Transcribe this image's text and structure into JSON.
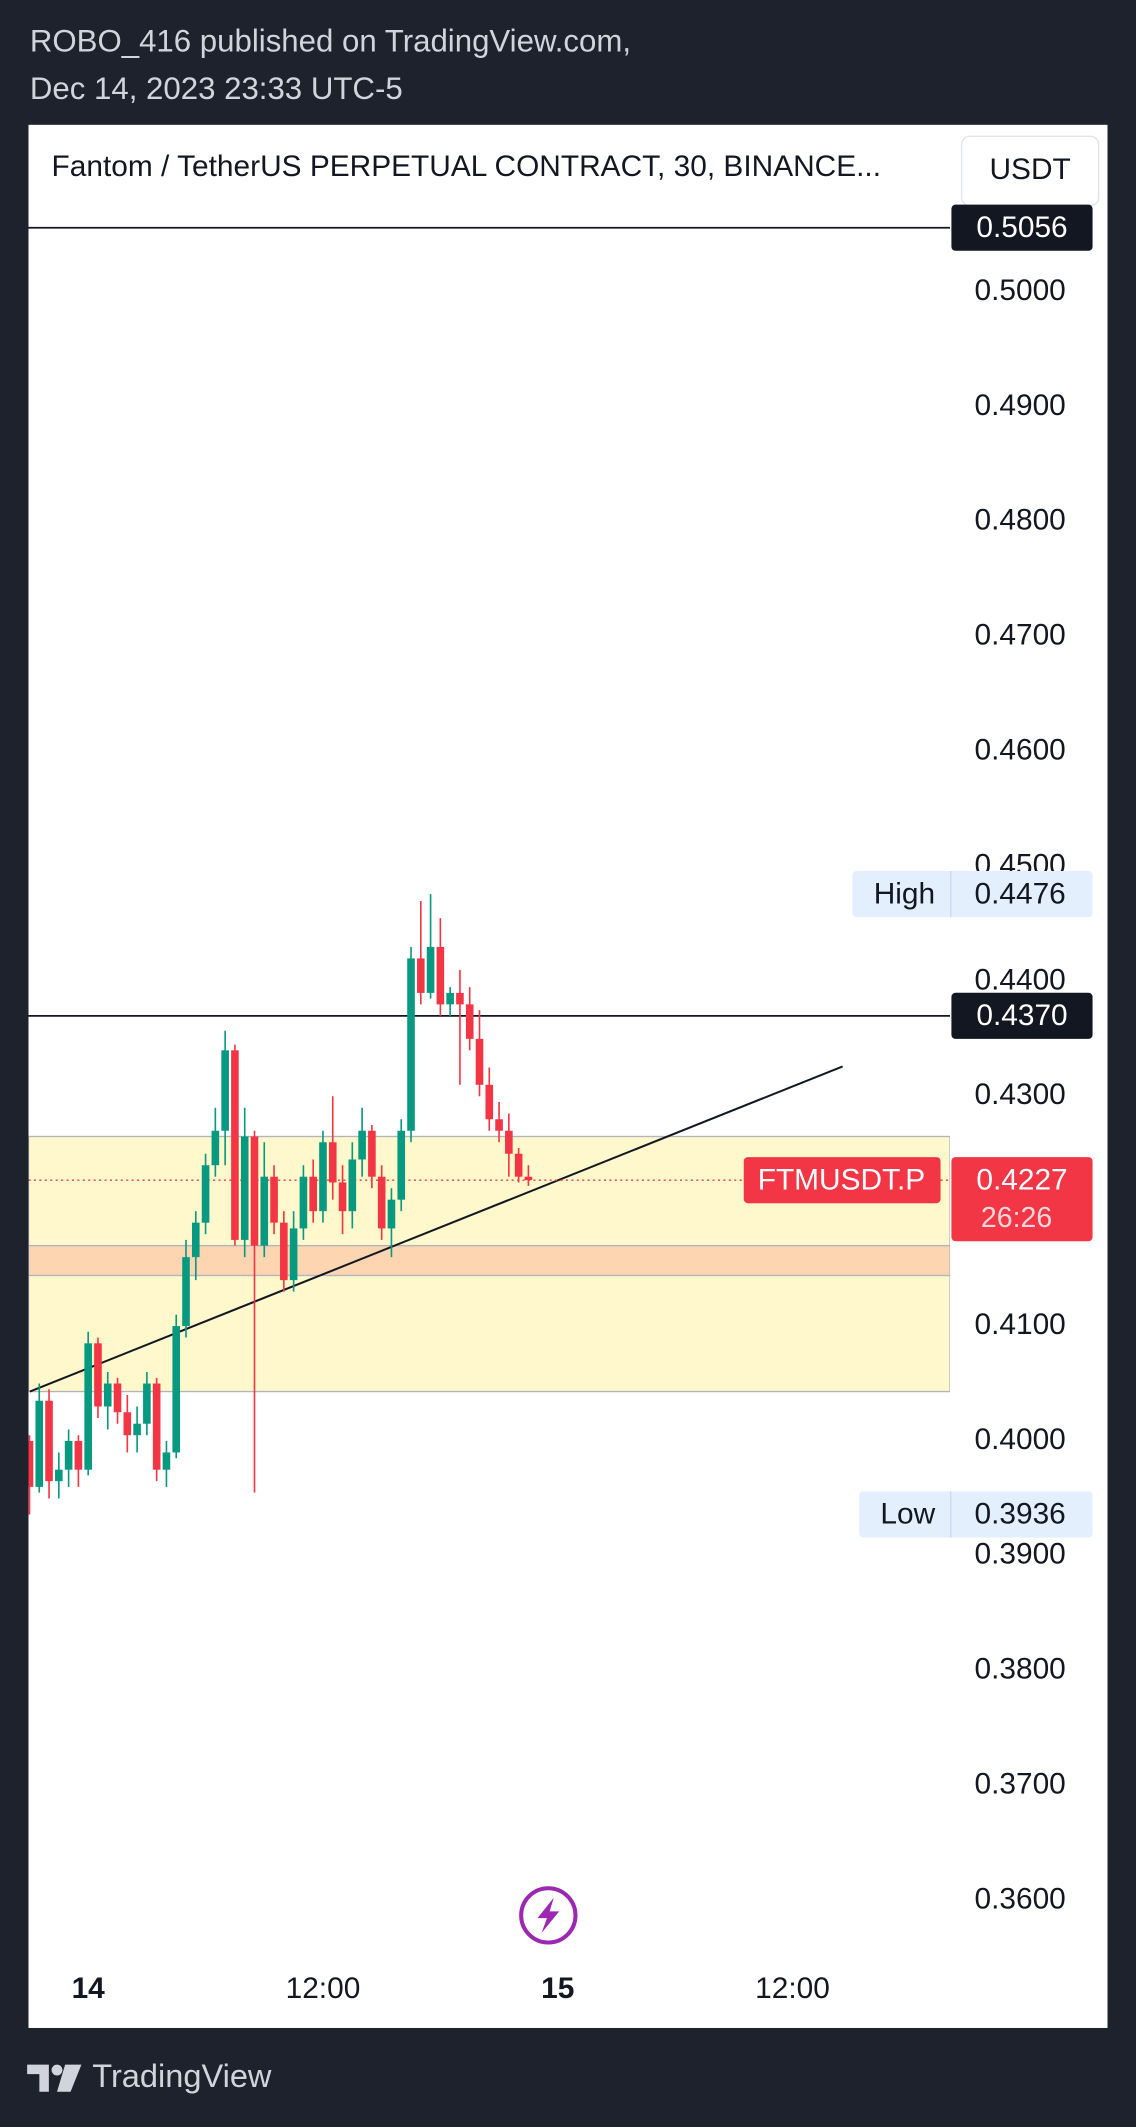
{
  "header": {
    "line1": "ROBO_416 published on TradingView.com,",
    "line2": "Dec 14, 2023 23:33 UTC-5"
  },
  "footer": {
    "brand": "TradingView"
  },
  "chart_data": {
    "type": "candlestick",
    "title": "Fantom / TetherUS PERPETUAL CONTRACT, 30, BINANCE...",
    "currency": "USDT",
    "up_color": "#089981",
    "down_color": "#f23645",
    "x": [
      -3,
      -2.5,
      -2,
      -1.5,
      -1,
      -0.5,
      0,
      0.5,
      1,
      1.5,
      2,
      2.5,
      3,
      3.5,
      4,
      4.5,
      5,
      5.5,
      6,
      6.5,
      7,
      7.5,
      8,
      8.5,
      9,
      9.5,
      10,
      10.5,
      11,
      11.5,
      12,
      12.5,
      13,
      13.5,
      14,
      14.5,
      15,
      15.5,
      16,
      16.5,
      17,
      17.5,
      18,
      18.5,
      19,
      19.5,
      20,
      20.5,
      21,
      21.5,
      22,
      22.5
    ],
    "open": [
      0.4,
      0.396,
      0.4035,
      0.3965,
      0.3975,
      0.4,
      0.3975,
      0.4085,
      0.403,
      0.405,
      0.4025,
      0.4005,
      0.4015,
      0.405,
      0.3975,
      0.399,
      0.41,
      0.416,
      0.419,
      0.424,
      0.427,
      0.434,
      0.4175,
      0.4265,
      0.417,
      0.423,
      0.419,
      0.414,
      0.4185,
      0.423,
      0.42,
      0.426,
      0.4225,
      0.42,
      0.4245,
      0.427,
      0.423,
      0.4185,
      0.421,
      0.427,
      0.442,
      0.439,
      0.443,
      0.438,
      0.439,
      0.438,
      0.435,
      0.431,
      0.428,
      0.427,
      0.425,
      0.423
    ],
    "high": [
      0.4005,
      0.405,
      0.4045,
      0.399,
      0.401,
      0.4005,
      0.4095,
      0.409,
      0.406,
      0.4055,
      0.404,
      0.403,
      0.406,
      0.4055,
      0.4,
      0.411,
      0.4175,
      0.42,
      0.425,
      0.429,
      0.4357,
      0.4345,
      0.429,
      0.427,
      0.426,
      0.424,
      0.42,
      0.42,
      0.424,
      0.4245,
      0.427,
      0.43,
      0.424,
      0.426,
      0.429,
      0.4275,
      0.424,
      0.422,
      0.428,
      0.443,
      0.447,
      0.4476,
      0.4455,
      0.4395,
      0.441,
      0.4395,
      0.4375,
      0.4325,
      0.4295,
      0.4285,
      0.4255,
      0.424
    ],
    "low": [
      0.3936,
      0.3955,
      0.395,
      0.395,
      0.396,
      0.396,
      0.397,
      0.402,
      0.401,
      0.4015,
      0.399,
      0.399,
      0.4005,
      0.3965,
      0.396,
      0.3985,
      0.409,
      0.414,
      0.418,
      0.423,
      0.424,
      0.417,
      0.416,
      0.3955,
      0.416,
      0.418,
      0.413,
      0.413,
      0.4175,
      0.419,
      0.419,
      0.421,
      0.418,
      0.4185,
      0.423,
      0.422,
      0.4175,
      0.416,
      0.42,
      0.426,
      0.438,
      0.4385,
      0.437,
      0.437,
      0.431,
      0.434,
      0.43,
      0.427,
      0.426,
      0.423,
      0.4225,
      0.4222
    ],
    "close": [
      0.396,
      0.4035,
      0.3965,
      0.3975,
      0.4,
      0.3975,
      0.4085,
      0.403,
      0.405,
      0.4025,
      0.4005,
      0.4015,
      0.405,
      0.3975,
      0.399,
      0.41,
      0.416,
      0.419,
      0.424,
      0.427,
      0.434,
      0.4175,
      0.4265,
      0.417,
      0.423,
      0.419,
      0.414,
      0.4185,
      0.423,
      0.42,
      0.426,
      0.4225,
      0.42,
      0.4245,
      0.427,
      0.423,
      0.4185,
      0.421,
      0.427,
      0.442,
      0.439,
      0.443,
      0.438,
      0.439,
      0.438,
      0.435,
      0.431,
      0.428,
      0.427,
      0.425,
      0.423,
      0.4227
    ],
    "xlim": [
      -3.05,
      44.05
    ],
    "xticks": [
      {
        "value": 0,
        "label": "14"
      },
      {
        "value": 12,
        "label": "12:00"
      },
      {
        "value": 24,
        "label": "15"
      },
      {
        "value": 36,
        "label": "12:00"
      }
    ],
    "ylim": [
      0.3554,
      0.5083
    ],
    "yticks": [
      {
        "value": 0.36,
        "label": "0.3600"
      },
      {
        "value": 0.37,
        "label": "0.3700"
      },
      {
        "value": 0.38,
        "label": "0.3800"
      },
      {
        "value": 0.39,
        "label": "0.3900"
      },
      {
        "value": 0.4,
        "label": "0.4000"
      },
      {
        "value": 0.41,
        "label": "0.4100"
      },
      {
        "value": 0.43,
        "label": "0.4300"
      },
      {
        "value": 0.44,
        "label": "0.4400"
      },
      {
        "value": 0.45,
        "label": "0.4500"
      },
      {
        "value": 0.46,
        "label": "0.4600"
      },
      {
        "value": 0.47,
        "label": "0.4700"
      },
      {
        "value": 0.48,
        "label": "0.4800"
      },
      {
        "value": 0.49,
        "label": "0.4900"
      },
      {
        "value": 0.5,
        "label": "0.5000"
      }
    ],
    "grid": false,
    "zones": [
      {
        "from": 0.4265,
        "to": 0.4043,
        "color": "#fff8cc"
      },
      {
        "from": 0.417,
        "to": 0.4144,
        "color": "#fdd5b1"
      }
    ],
    "trendline": {
      "x": [
        -2.98,
        38.56
      ],
      "y": [
        0.4043,
        0.4326
      ]
    },
    "price_lines": [
      {
        "value": 0.5056
      },
      {
        "value": 0.437,
        "label": "0.4370"
      }
    ],
    "high_tag": {
      "label": "High",
      "value": 0.4476
    },
    "low_tag": {
      "label": "Low",
      "value": 0.3936
    },
    "last": {
      "symbol": "FTMUSDT.P",
      "value": 0.4227,
      "countdown": "26:26"
    }
  }
}
